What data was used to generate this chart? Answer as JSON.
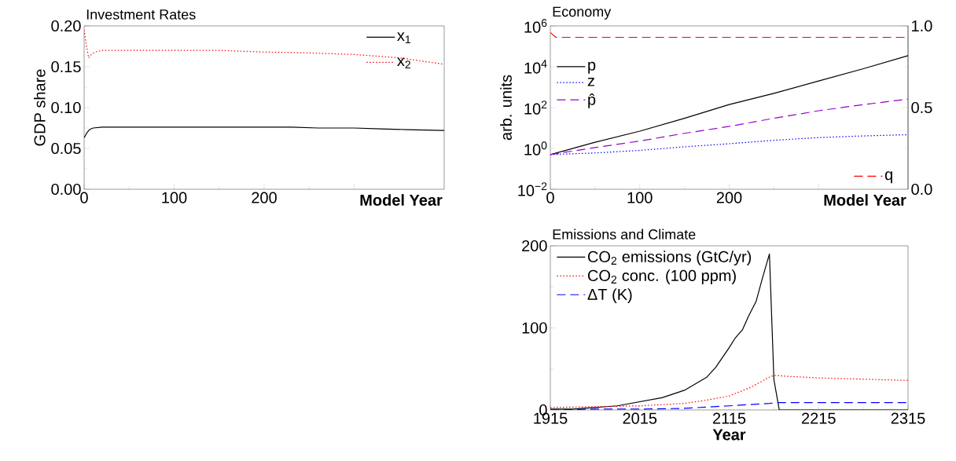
{
  "chart_data": [
    {
      "type": "line",
      "title": "Investment Rates",
      "xlabel": "Model Year",
      "ylabel": "GDP share",
      "xlim": [
        0,
        400
      ],
      "ylim": [
        0,
        0.2
      ],
      "xticks": [
        0,
        100,
        200,
        {
          "value": 300,
          "label": null
        }
      ],
      "yticks": [
        {
          "value": 0,
          "label": "0.00"
        },
        {
          "value": 0.05,
          "label": "0.05"
        },
        {
          "value": 0.1,
          "label": "0.10"
        },
        {
          "value": 0.15,
          "label": "0.15"
        },
        {
          "value": 0.2,
          "label": "0.20"
        }
      ],
      "legend": "top right",
      "series": [
        {
          "name": "x$_{1}$",
          "color": "#000000",
          "line_style": "solid",
          "x": [
            0,
            3,
            6,
            10,
            20,
            50,
            100,
            150,
            200,
            230,
            260,
            300,
            330,
            360,
            400
          ],
          "values": [
            0.063,
            0.069,
            0.073,
            0.075,
            0.076,
            0.076,
            0.076,
            0.076,
            0.076,
            0.076,
            0.075,
            0.075,
            0.074,
            0.073,
            0.072
          ]
        },
        {
          "name": "x$_{2}$",
          "color": "#ff0000",
          "line_style": "dotted",
          "x": [
            0,
            2,
            5,
            8,
            12,
            20,
            50,
            100,
            150,
            200,
            250,
            300,
            350,
            400
          ],
          "values": [
            0.195,
            0.18,
            0.161,
            0.165,
            0.168,
            0.17,
            0.17,
            0.17,
            0.17,
            0.168,
            0.167,
            0.165,
            0.161,
            0.153
          ]
        }
      ]
    },
    {
      "type": "line",
      "title": "Economy",
      "xlabel": "Model Year",
      "ylabel": "arb. units",
      "log": "y",
      "xlim": [
        0,
        400
      ],
      "ylim": [
        0.01,
        1000000
      ],
      "y2lim": [
        0,
        1
      ],
      "xticks": [
        0,
        100,
        200,
        {
          "value": 300,
          "label": null
        }
      ],
      "yticks": [
        {
          "value": 0.01,
          "label": "10$^{−2}$"
        },
        {
          "value": 1,
          "label": "10$^{0}$"
        },
        {
          "value": 100,
          "label": "10$^{2}$"
        },
        {
          "value": 10000,
          "label": "10$^{4}$"
        },
        {
          "value": 1000000,
          "label": "10$^{6}$"
        }
      ],
      "y2ticks": [
        {
          "value": 0,
          "label": "0.0"
        },
        {
          "value": 0.5,
          "label": "0.5"
        },
        {
          "value": 1,
          "label": "1.0"
        }
      ],
      "legend": "left",
      "series": [
        {
          "name": "p",
          "color": "#000000",
          "line_style": "solid",
          "x": [
            0,
            50,
            100,
            150,
            200,
            250,
            300,
            350,
            400
          ],
          "values": [
            0.5,
            2,
            7,
            30,
            140,
            500,
            2000,
            8000,
            35000
          ]
        },
        {
          "name": "z",
          "color": "#0000ff",
          "line_style": "dotted",
          "x": [
            0,
            50,
            100,
            150,
            200,
            250,
            300,
            350,
            400
          ],
          "values": [
            0.5,
            0.6,
            0.8,
            1.2,
            1.7,
            2.5,
            3.4,
            4.1,
            4.7
          ]
        },
        {
          "name": "p̂",
          "color": "#9400d3",
          "line_style": "dashed",
          "x": [
            0,
            50,
            100,
            150,
            200,
            250,
            300,
            350,
            400
          ],
          "values": [
            0.5,
            1.1,
            2.3,
            5.5,
            12,
            30,
            70,
            140,
            260
          ]
        },
        {
          "name": "q",
          "color": "#ff0000",
          "line_style": "dashed",
          "axis": "y2",
          "x": [
            0,
            6,
            400
          ],
          "values": [
            0.96,
            0.93,
            0.93
          ]
        }
      ]
    },
    {
      "type": "line",
      "title": "Emissions and Climate",
      "xlabel": "Year",
      "xlim": [
        1915,
        2315
      ],
      "ylim": [
        0,
        200
      ],
      "xticks": [
        1915,
        2015,
        2115,
        2215,
        2315
      ],
      "yticks": [
        0,
        100,
        200
      ],
      "legend": "top left",
      "series": [
        {
          "name": "CO$_{2}$ emissions (GtC/yr)",
          "color": "#000000",
          "line_style": "solid",
          "x": [
            1915,
            1940,
            1965,
            1990,
            2015,
            2040,
            2065,
            2090,
            2100,
            2115,
            2122,
            2130,
            2137,
            2145,
            2152,
            2160,
            2165,
            2171,
            2315
          ],
          "values": [
            1,
            1,
            3,
            5,
            10,
            15,
            24,
            40,
            52,
            76,
            88,
            98,
            115,
            132,
            160,
            190,
            37,
            0,
            0
          ]
        },
        {
          "name": "CO$_{2}$ conc. (100 ppm)",
          "color": "#ff0000",
          "line_style": "dotted",
          "x": [
            1915,
            1965,
            2015,
            2065,
            2090,
            2115,
            2140,
            2160,
            2165,
            2215,
            2315
          ],
          "values": [
            3,
            4,
            5,
            8,
            12,
            17,
            28,
            40,
            42,
            39,
            36
          ]
        },
        {
          "name": "ΔT (K)",
          "color": "#0000ff",
          "line_style": "dashed",
          "x": [
            1915,
            1965,
            2015,
            2065,
            2115,
            2160,
            2170,
            2315
          ],
          "values": [
            0,
            1,
            1,
            2,
            5,
            8,
            9,
            9
          ]
        }
      ]
    }
  ]
}
